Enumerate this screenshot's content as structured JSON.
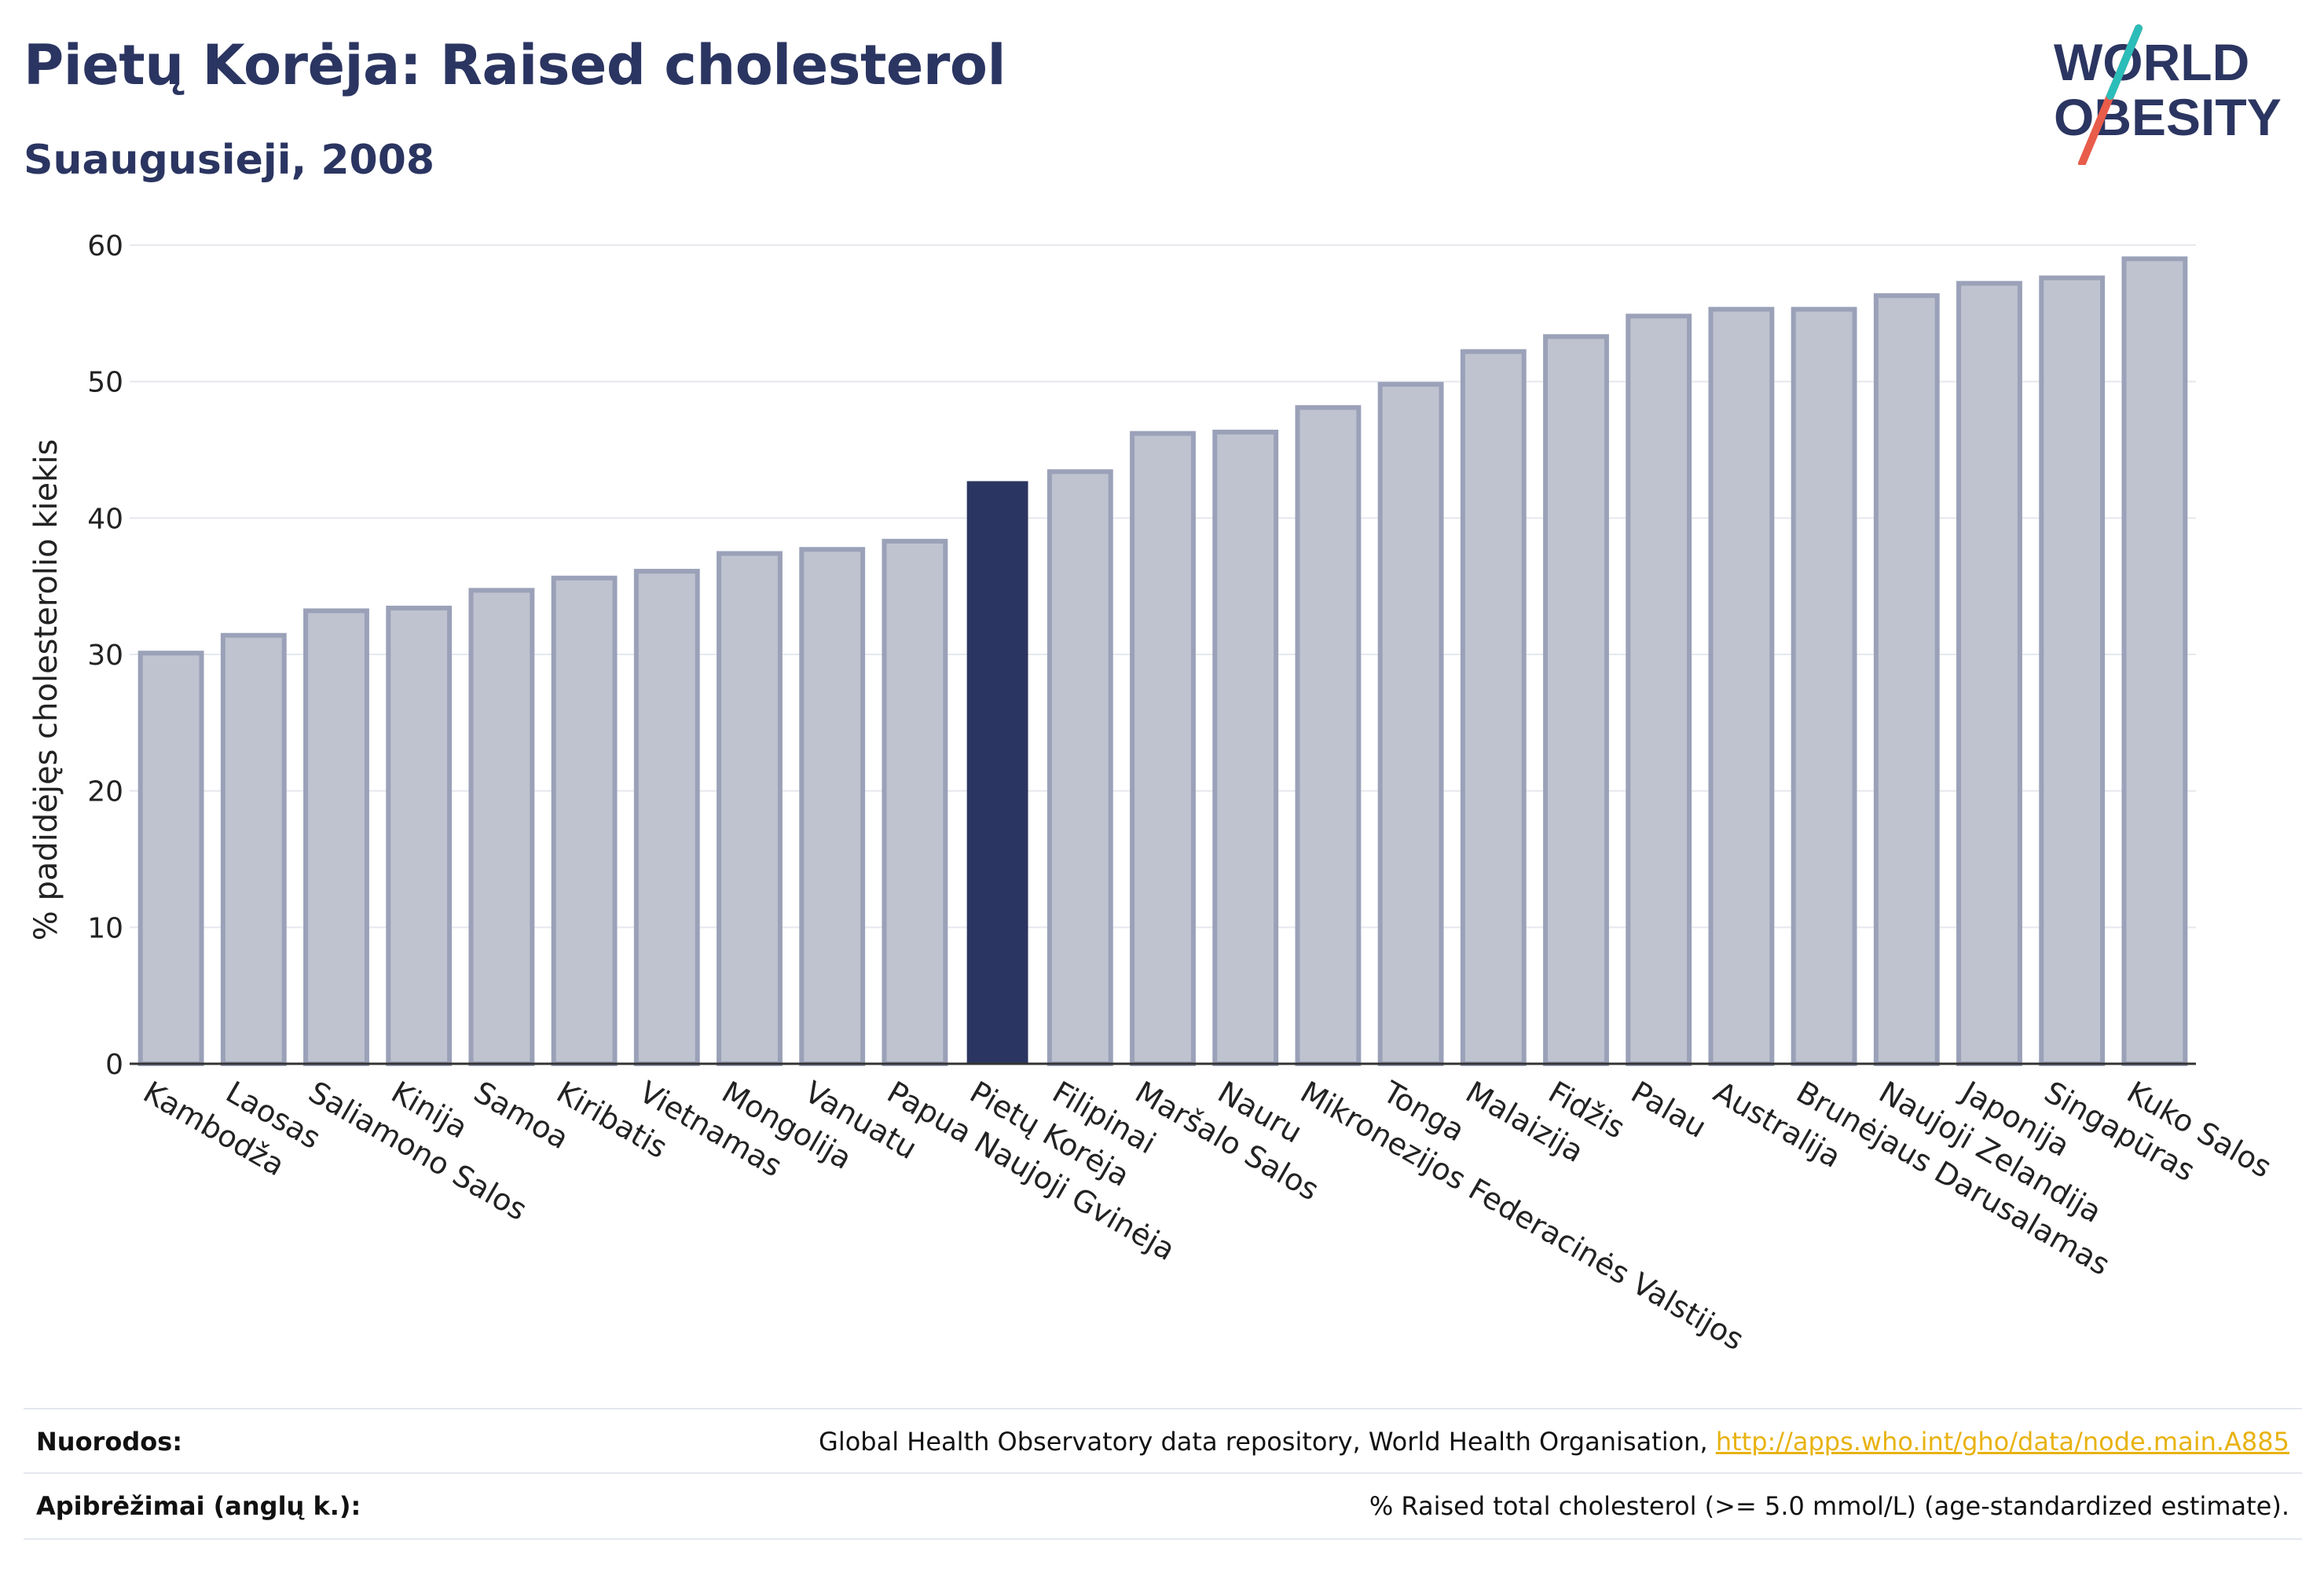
{
  "header": {
    "title": "Pietų Korėja: Raised cholesterol",
    "subtitle": "Suaugusieji, 2008"
  },
  "logo": {
    "line1": "WORLD",
    "line2": "OBESITY"
  },
  "colors": {
    "bar": "#bfc3cf",
    "bar_stroke": "#9aa1b8",
    "highlight": "#2b3561",
    "text": "#2b3561",
    "grid": "#e6e8ee",
    "link": "#e8b20f"
  },
  "chart_data": {
    "type": "bar",
    "ylabel": "% padidėjęs cholesterolio kiekis",
    "ylim": [
      0,
      60
    ],
    "yticks": [
      0,
      10,
      20,
      30,
      40,
      50,
      60
    ],
    "grid": true,
    "highlight": "Pietų Korėja",
    "categories": [
      "Kambodža",
      "Laosas",
      "Saliamono Salos",
      "Kinija",
      "Samoa",
      "Kiribatis",
      "Vietnamas",
      "Mongolija",
      "Vanuatu",
      "Papua Naujoji Gvinėja",
      "Pietų Korėja",
      "Filipinai",
      "Maršalo Salos",
      "Nauru",
      "Mikronezijos Federacinės Valstijos",
      "Tonga",
      "Malaizija",
      "Fidžis",
      "Palau",
      "Australija",
      "Brunėjaus Darusalamas",
      "Naujoji Zelandija",
      "Japonija",
      "Singapūras",
      "Kuko Salos"
    ],
    "values": [
      30.1,
      31.4,
      33.2,
      33.4,
      34.7,
      35.6,
      36.1,
      37.4,
      37.7,
      38.3,
      42.7,
      43.4,
      46.2,
      46.3,
      48.1,
      49.8,
      52.2,
      53.3,
      54.8,
      55.3,
      55.3,
      56.3,
      57.2,
      57.6,
      59.0
    ]
  },
  "footer": {
    "refs_label": "Nuorodos:",
    "refs_text": "Global Health Observatory data repository, World Health Organisation, ",
    "refs_link": "http://apps.who.int/gho/data/node.main.A885",
    "defs_label": "Apibrėžimai (anglų k.):",
    "defs_text": "% Raised total cholesterol (>= 5.0 mmol/L) (age-standardized estimate)."
  }
}
